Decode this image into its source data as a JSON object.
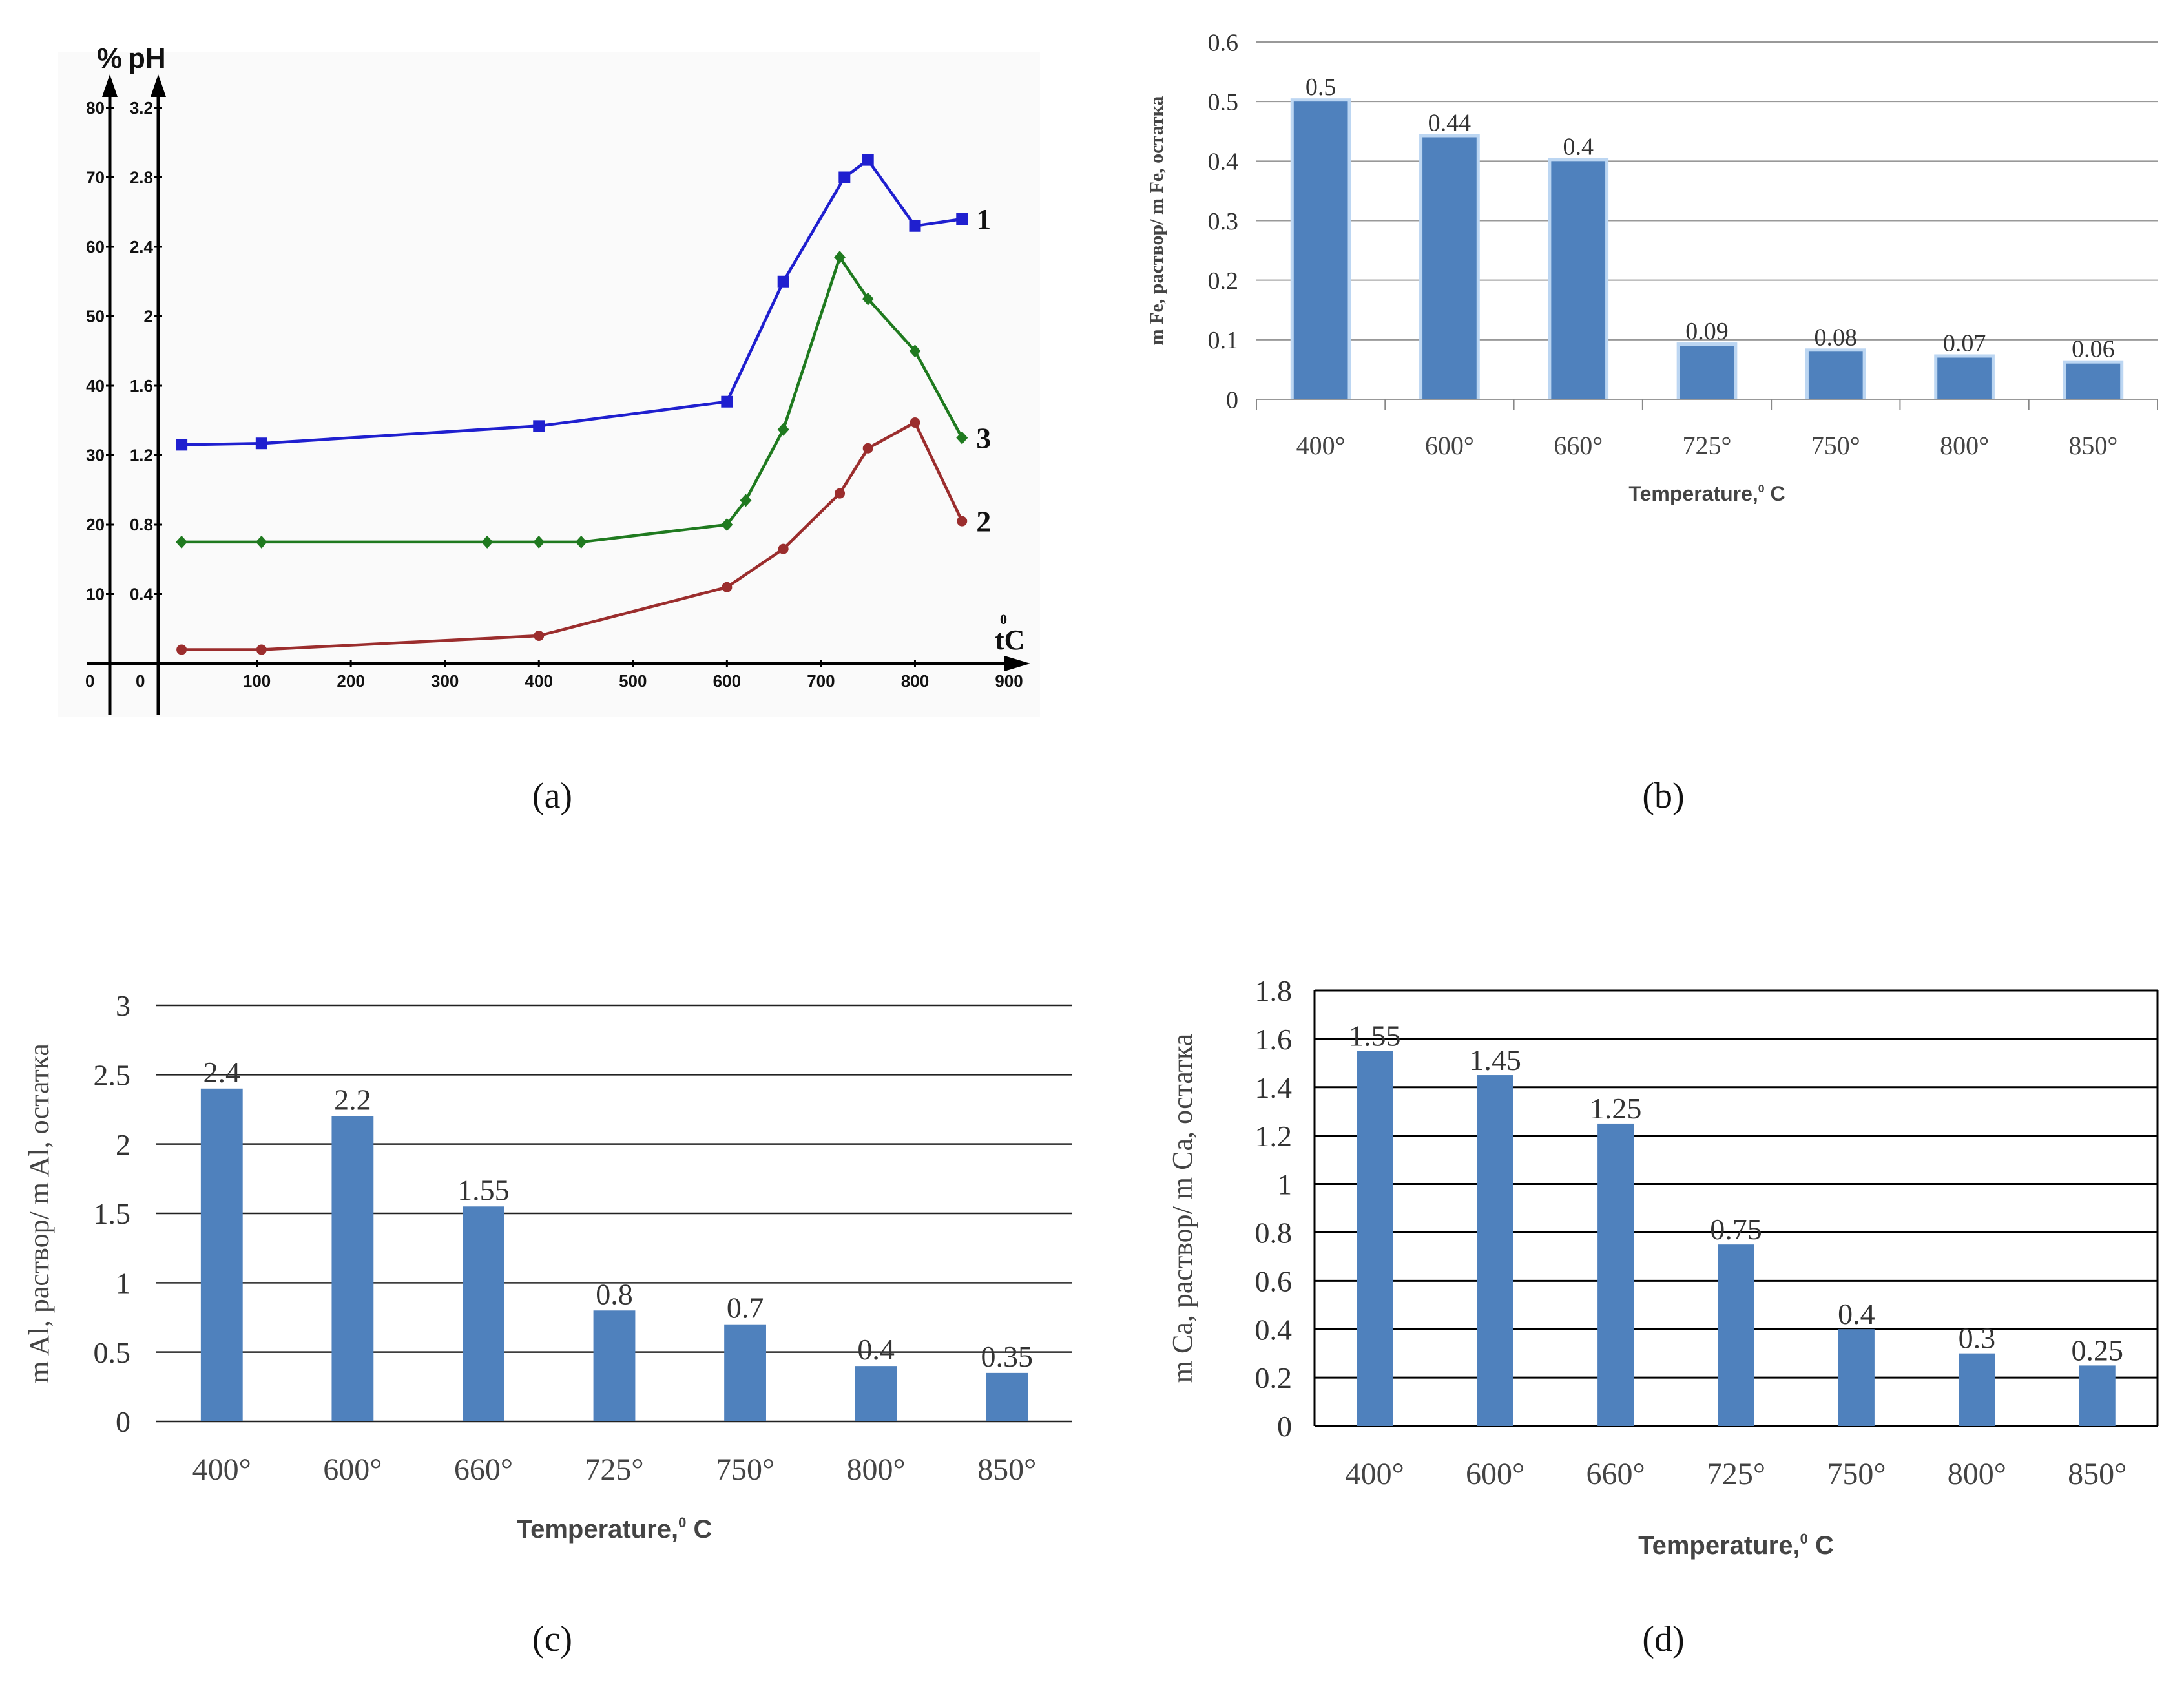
{
  "figure": {
    "captions": [
      "(a)",
      "(b)",
      "(c)",
      "(d)"
    ]
  },
  "chart_data": [
    {
      "id": "a",
      "type": "line",
      "y_axis_labels": [
        "%",
        "pH"
      ],
      "x_axis_label": "tC",
      "x_axis_label_superscript": "0",
      "x_origin_label": "0",
      "y_origin_label": "0",
      "xlim": [
        0,
        900
      ],
      "x_ticks": [
        100,
        200,
        300,
        400,
        500,
        600,
        700,
        800,
        900
      ],
      "ylim_percent": [
        0,
        80
      ],
      "y_ticks_percent": [
        10,
        20,
        30,
        40,
        50,
        60,
        70,
        80
      ],
      "y_ticks_ph": [
        "0.4",
        "0.8",
        "1.2",
        "1.6",
        "2",
        "2.4",
        "2.8",
        "3.2"
      ],
      "series": [
        {
          "name": "1",
          "color": "#1f1fcf",
          "marker": "square",
          "x": [
            20,
            105,
            400,
            600,
            660,
            725,
            750,
            800,
            850
          ],
          "y": [
            31.5,
            31.7,
            34.2,
            37.7,
            55,
            70,
            72.5,
            63,
            64
          ]
        },
        {
          "name": "3",
          "color": "#1f7a1f",
          "marker": "diamond",
          "x": [
            20,
            105,
            345,
            400,
            445,
            600,
            620,
            660,
            720,
            750,
            800,
            850
          ],
          "y": [
            17.5,
            17.5,
            17.5,
            17.5,
            17.5,
            20,
            23.5,
            33.7,
            58.5,
            52.5,
            45,
            32.5
          ]
        },
        {
          "name": "2",
          "color": "#9b2d2d",
          "marker": "circle",
          "x": [
            20,
            105,
            400,
            600,
            660,
            720,
            750,
            800,
            850
          ],
          "y": [
            2,
            2,
            4,
            11,
            16.5,
            24.5,
            31,
            34.7,
            20.5
          ]
        }
      ]
    },
    {
      "id": "b",
      "type": "bar",
      "categories": [
        "400°",
        "600°",
        "660°",
        "725°",
        "750°",
        "800°",
        "850°"
      ],
      "values": [
        0.5,
        0.44,
        0.4,
        0.09,
        0.08,
        0.07,
        0.06
      ],
      "data_labels": [
        "0.5",
        "0.44",
        "0.4",
        "0.09",
        "0.08",
        "0.07",
        "0.06"
      ],
      "ylabel": "m Fe, раствор/ m Fe, остатка",
      "xlabel": "Temperature,",
      "xlabel_sup": "0",
      "xlabel_unit": " C",
      "ylim": [
        0,
        0.6
      ],
      "y_ticks": [
        "0",
        "0.1",
        "0.2",
        "0.3",
        "0.4",
        "0.5",
        "0.6"
      ],
      "bar_color": "#4f81bd"
    },
    {
      "id": "c",
      "type": "bar",
      "categories": [
        "400°",
        "600°",
        "660°",
        "725°",
        "750°",
        "800°",
        "850°"
      ],
      "values": [
        2.4,
        2.2,
        1.55,
        0.8,
        0.7,
        0.4,
        0.35
      ],
      "data_labels": [
        "2.4",
        "2.2",
        "1.55",
        "0.8",
        "0.7",
        "0.4",
        "0.35"
      ],
      "ylabel": "m Al, раствор/ m Al, остатка",
      "xlabel": "Temperature,",
      "xlabel_sup": "0",
      "xlabel_unit": " C",
      "ylim": [
        0,
        3
      ],
      "y_ticks": [
        "0",
        "0.5",
        "1",
        "1.5",
        "2",
        "2.5",
        "3"
      ],
      "bar_color": "#4f81bd"
    },
    {
      "id": "d",
      "type": "bar",
      "categories": [
        "400°",
        "600°",
        "660°",
        "725°",
        "750°",
        "800°",
        "850°"
      ],
      "values": [
        1.55,
        1.45,
        1.25,
        0.75,
        0.4,
        0.3,
        0.25
      ],
      "data_labels": [
        "1.55",
        "1.45",
        "1.25",
        "0.75",
        "0.4",
        "0.3",
        "0.25"
      ],
      "ylabel": "m Ca, раствор/ m Ca, остатка",
      "xlabel": "Temperature,",
      "xlabel_sup": "0",
      "xlabel_unit": " C",
      "ylim": [
        0,
        1.8
      ],
      "y_ticks": [
        "0",
        "0.2",
        "0.4",
        "0.6",
        "0.8",
        "1",
        "1.2",
        "1.4",
        "1.6",
        "1.8"
      ],
      "bar_color": "#4f81bd"
    }
  ]
}
